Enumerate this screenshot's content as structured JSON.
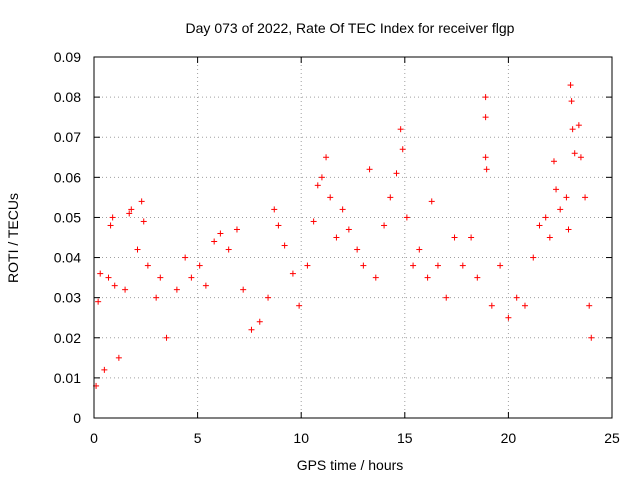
{
  "chart_data": {
    "type": "scatter",
    "title": "Day 073 of 2022, Rate Of TEC Index for receiver flgp",
    "xlabel": "GPS time / hours",
    "ylabel": "ROTI / TECUs",
    "xlim": [
      0,
      25
    ],
    "ylim": [
      0,
      0.09
    ],
    "xticks": [
      "0",
      "5",
      "10",
      "15",
      "20",
      "25"
    ],
    "yticks": [
      "0",
      "0.01",
      "0.02",
      "0.03",
      "0.04",
      "0.05",
      "0.06",
      "0.07",
      "0.08",
      "0.09"
    ],
    "grid": true,
    "marker": "+",
    "color": "#ff0000",
    "series": [
      {
        "name": "ROTI",
        "points": [
          [
            0.1,
            0.008
          ],
          [
            0.2,
            0.029
          ],
          [
            0.3,
            0.036
          ],
          [
            0.5,
            0.012
          ],
          [
            0.7,
            0.035
          ],
          [
            0.8,
            0.048
          ],
          [
            0.9,
            0.05
          ],
          [
            1.0,
            0.033
          ],
          [
            1.2,
            0.015
          ],
          [
            1.5,
            0.032
          ],
          [
            1.7,
            0.051
          ],
          [
            1.8,
            0.052
          ],
          [
            2.1,
            0.042
          ],
          [
            2.3,
            0.054
          ],
          [
            2.4,
            0.049
          ],
          [
            2.6,
            0.038
          ],
          [
            3.0,
            0.03
          ],
          [
            3.2,
            0.035
          ],
          [
            3.5,
            0.02
          ],
          [
            4.0,
            0.032
          ],
          [
            4.4,
            0.04
          ],
          [
            4.7,
            0.035
          ],
          [
            5.1,
            0.038
          ],
          [
            5.4,
            0.033
          ],
          [
            5.8,
            0.044
          ],
          [
            6.1,
            0.046
          ],
          [
            6.5,
            0.042
          ],
          [
            6.9,
            0.047
          ],
          [
            7.2,
            0.032
          ],
          [
            7.6,
            0.022
          ],
          [
            8.0,
            0.024
          ],
          [
            8.4,
            0.03
          ],
          [
            8.7,
            0.052
          ],
          [
            8.9,
            0.048
          ],
          [
            9.2,
            0.043
          ],
          [
            9.6,
            0.036
          ],
          [
            9.9,
            0.028
          ],
          [
            10.3,
            0.038
          ],
          [
            10.6,
            0.049
          ],
          [
            10.8,
            0.058
          ],
          [
            11.0,
            0.06
          ],
          [
            11.2,
            0.065
          ],
          [
            11.4,
            0.055
          ],
          [
            11.7,
            0.045
          ],
          [
            12.0,
            0.052
          ],
          [
            12.3,
            0.047
          ],
          [
            12.7,
            0.042
          ],
          [
            13.0,
            0.038
          ],
          [
            13.3,
            0.062
          ],
          [
            13.6,
            0.035
          ],
          [
            14.0,
            0.048
          ],
          [
            14.3,
            0.055
          ],
          [
            14.6,
            0.061
          ],
          [
            14.8,
            0.072
          ],
          [
            14.9,
            0.067
          ],
          [
            15.1,
            0.05
          ],
          [
            15.4,
            0.038
          ],
          [
            15.7,
            0.042
          ],
          [
            16.1,
            0.035
          ],
          [
            16.3,
            0.054
          ],
          [
            16.6,
            0.038
          ],
          [
            17.0,
            0.03
          ],
          [
            17.4,
            0.045
          ],
          [
            17.8,
            0.038
          ],
          [
            18.2,
            0.045
          ],
          [
            18.5,
            0.035
          ],
          [
            18.9,
            0.08
          ],
          [
            18.9,
            0.075
          ],
          [
            18.9,
            0.065
          ],
          [
            18.95,
            0.062
          ],
          [
            19.2,
            0.028
          ],
          [
            19.6,
            0.038
          ],
          [
            20.0,
            0.025
          ],
          [
            20.4,
            0.03
          ],
          [
            20.8,
            0.028
          ],
          [
            21.2,
            0.04
          ],
          [
            21.5,
            0.048
          ],
          [
            21.8,
            0.05
          ],
          [
            22.0,
            0.045
          ],
          [
            22.2,
            0.064
          ],
          [
            22.3,
            0.057
          ],
          [
            22.5,
            0.052
          ],
          [
            22.8,
            0.055
          ],
          [
            22.9,
            0.047
          ],
          [
            23.0,
            0.083
          ],
          [
            23.05,
            0.079
          ],
          [
            23.1,
            0.072
          ],
          [
            23.2,
            0.066
          ],
          [
            23.4,
            0.073
          ],
          [
            23.5,
            0.065
          ],
          [
            23.7,
            0.055
          ],
          [
            23.9,
            0.028
          ],
          [
            24.0,
            0.02
          ]
        ]
      }
    ]
  }
}
